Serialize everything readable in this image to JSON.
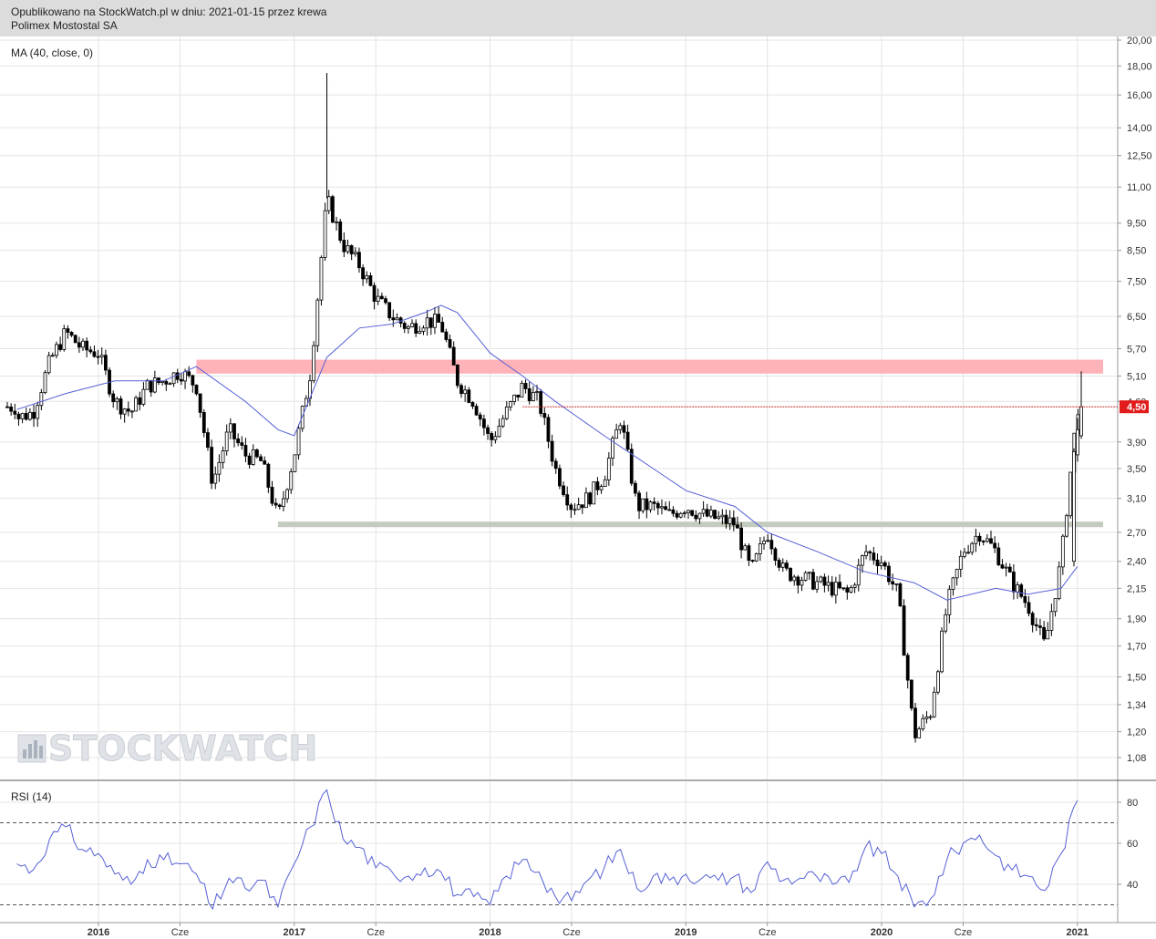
{
  "header": {
    "line1": "Opublikowano na StockWatch.pl w dniu: 2021-01-15 przez krewa",
    "line2": "Polimex Mostostal SA"
  },
  "watermark": {
    "text": "STOCKWATCH"
  },
  "colors": {
    "candle": "#000000",
    "ma": "#5560d6",
    "rsi": "#5560d6",
    "resistance_zone": "#ffb3b8",
    "support_zone": "#c3cbbf",
    "last_price_badge": "#e21b1b",
    "grid": "#e4e4e4"
  },
  "chart_data": [
    {
      "type": "candlestick",
      "title": "Polimex Mostostal SA",
      "indicator_label": "MA (40, close, 0)",
      "y_scale": "log",
      "ylim": [
        1.0,
        20.0
      ],
      "y_ticks": [
        "20,00",
        "18,00",
        "16,00",
        "14,00",
        "12,50",
        "11,00",
        "9,50",
        "8,50",
        "7,50",
        "6,50",
        "5,70",
        "5,10",
        "4,60",
        "3,90",
        "3,50",
        "3,10",
        "2,70",
        "2,40",
        "2,15",
        "1,90",
        "1,70",
        "1,50",
        "1,34",
        "1,20",
        "1,08"
      ],
      "x_ticks": [
        "2016",
        "Cze",
        "2017",
        "Cze",
        "2018",
        "Cze",
        "2019",
        "Cze",
        "2020",
        "Cze",
        "2021"
      ],
      "last_price": {
        "value": 4.5,
        "label": "4,50"
      },
      "zones": [
        {
          "name": "resistance",
          "from": 5.15,
          "to": 5.45,
          "start": "2016-07"
        },
        {
          "name": "support",
          "from": 2.76,
          "to": 2.82,
          "start": "2016-12"
        }
      ],
      "price_path": [
        {
          "t": "2015-08",
          "v": 4.3
        },
        {
          "t": "2015-09",
          "v": 4.4
        },
        {
          "t": "2015-10",
          "v": 5.4
        },
        {
          "t": "2015-11",
          "v": 6.1
        },
        {
          "t": "2015-12",
          "v": 5.7
        },
        {
          "t": "2016-01",
          "v": 5.6
        },
        {
          "t": "2016-02",
          "v": 4.6
        },
        {
          "t": "2016-03",
          "v": 4.4
        },
        {
          "t": "2016-04",
          "v": 4.9
        },
        {
          "t": "2016-05",
          "v": 5.0
        },
        {
          "t": "2016-06",
          "v": 5.2
        },
        {
          "t": "2016-07",
          "v": 4.9
        },
        {
          "t": "2016-08",
          "v": 3.3
        },
        {
          "t": "2016-09",
          "v": 4.1
        },
        {
          "t": "2016-10",
          "v": 3.7
        },
        {
          "t": "2016-11",
          "v": 3.6
        },
        {
          "t": "2016-12",
          "v": 2.85
        },
        {
          "t": "2017-01",
          "v": 3.7
        },
        {
          "t": "2017-02",
          "v": 5.2
        },
        {
          "t": "2017-03",
          "v": 10.5
        },
        {
          "t": "2017-04",
          "v": 8.7
        },
        {
          "t": "2017-05",
          "v": 8.0
        },
        {
          "t": "2017-06",
          "v": 7.0
        },
        {
          "t": "2017-07",
          "v": 6.5
        },
        {
          "t": "2017-08",
          "v": 6.2
        },
        {
          "t": "2017-09",
          "v": 6.4
        },
        {
          "t": "2017-10",
          "v": 6.3
        },
        {
          "t": "2017-11",
          "v": 5.0
        },
        {
          "t": "2017-12",
          "v": 4.6
        },
        {
          "t": "2018-01",
          "v": 3.9
        },
        {
          "t": "2018-02",
          "v": 4.4
        },
        {
          "t": "2018-03",
          "v": 4.9
        },
        {
          "t": "2018-04",
          "v": 4.6
        },
        {
          "t": "2018-05",
          "v": 3.5
        },
        {
          "t": "2018-06",
          "v": 3.0
        },
        {
          "t": "2018-07",
          "v": 3.1
        },
        {
          "t": "2018-08",
          "v": 3.4
        },
        {
          "t": "2018-09",
          "v": 4.3
        },
        {
          "t": "2018-10",
          "v": 3.0
        },
        {
          "t": "2018-11",
          "v": 3.0
        },
        {
          "t": "2018-12",
          "v": 2.9
        },
        {
          "t": "2019-01",
          "v": 3.0
        },
        {
          "t": "2019-02",
          "v": 2.9
        },
        {
          "t": "2019-03",
          "v": 2.85
        },
        {
          "t": "2019-04",
          "v": 2.8
        },
        {
          "t": "2019-05",
          "v": 2.3
        },
        {
          "t": "2019-06",
          "v": 2.7
        },
        {
          "t": "2019-07",
          "v": 2.3
        },
        {
          "t": "2019-08",
          "v": 2.25
        },
        {
          "t": "2019-09",
          "v": 2.2
        },
        {
          "t": "2019-10",
          "v": 2.15
        },
        {
          "t": "2019-11",
          "v": 2.1
        },
        {
          "t": "2019-12",
          "v": 2.5
        },
        {
          "t": "2020-01",
          "v": 2.4
        },
        {
          "t": "2020-02",
          "v": 2.1
        },
        {
          "t": "2020-03",
          "v": 1.18
        },
        {
          "t": "2020-04",
          "v": 1.3
        },
        {
          "t": "2020-05",
          "v": 2.0
        },
        {
          "t": "2020-06",
          "v": 2.5
        },
        {
          "t": "2020-07",
          "v": 2.7
        },
        {
          "t": "2020-08",
          "v": 2.5
        },
        {
          "t": "2020-09",
          "v": 2.2
        },
        {
          "t": "2020-10",
          "v": 2.0
        },
        {
          "t": "2020-11",
          "v": 1.7
        },
        {
          "t": "2020-12",
          "v": 2.4
        },
        {
          "t": "2021-01",
          "v": 4.5
        }
      ],
      "ma_path": [
        {
          "t": "2015-08",
          "v": 4.45
        },
        {
          "t": "2015-11",
          "v": 4.75
        },
        {
          "t": "2016-02",
          "v": 5.0
        },
        {
          "t": "2016-05",
          "v": 5.0
        },
        {
          "t": "2016-07",
          "v": 5.3
        },
        {
          "t": "2016-10",
          "v": 4.6
        },
        {
          "t": "2016-12",
          "v": 4.1
        },
        {
          "t": "2017-01",
          "v": 4.0
        },
        {
          "t": "2017-03",
          "v": 5.5
        },
        {
          "t": "2017-05",
          "v": 6.2
        },
        {
          "t": "2017-07",
          "v": 6.3
        },
        {
          "t": "2017-09",
          "v": 6.6
        },
        {
          "t": "2017-10",
          "v": 6.8
        },
        {
          "t": "2017-11",
          "v": 6.6
        },
        {
          "t": "2018-01",
          "v": 5.6
        },
        {
          "t": "2018-03",
          "v": 5.1
        },
        {
          "t": "2018-05",
          "v": 4.6
        },
        {
          "t": "2018-08",
          "v": 4.0
        },
        {
          "t": "2018-11",
          "v": 3.5
        },
        {
          "t": "2019-01",
          "v": 3.2
        },
        {
          "t": "2019-04",
          "v": 3.0
        },
        {
          "t": "2019-06",
          "v": 2.7
        },
        {
          "t": "2019-09",
          "v": 2.5
        },
        {
          "t": "2019-12",
          "v": 2.3
        },
        {
          "t": "2020-03",
          "v": 2.2
        },
        {
          "t": "2020-05",
          "v": 2.05
        },
        {
          "t": "2020-08",
          "v": 2.15
        },
        {
          "t": "2020-10",
          "v": 2.1
        },
        {
          "t": "2020-12",
          "v": 2.15
        },
        {
          "t": "2021-01",
          "v": 2.35
        }
      ]
    },
    {
      "type": "line",
      "title": "RSI (14)",
      "ylim": [
        25,
        90
      ],
      "y_ticks": [
        80,
        60,
        40
      ],
      "reference_lines": [
        70,
        30
      ],
      "series": [
        {
          "values": [
            {
              "t": "2015-08",
              "v": 50
            },
            {
              "t": "2015-09",
              "v": 47
            },
            {
              "t": "2015-10",
              "v": 62
            },
            {
              "t": "2015-11",
              "v": 68
            },
            {
              "t": "2015-12",
              "v": 57
            },
            {
              "t": "2016-01",
              "v": 55
            },
            {
              "t": "2016-02",
              "v": 45
            },
            {
              "t": "2016-03",
              "v": 40
            },
            {
              "t": "2016-04",
              "v": 52
            },
            {
              "t": "2016-05",
              "v": 52
            },
            {
              "t": "2016-06",
              "v": 50
            },
            {
              "t": "2016-07",
              "v": 45
            },
            {
              "t": "2016-08",
              "v": 28
            },
            {
              "t": "2016-09",
              "v": 43
            },
            {
              "t": "2016-10",
              "v": 38
            },
            {
              "t": "2016-11",
              "v": 42
            },
            {
              "t": "2016-12",
              "v": 29
            },
            {
              "t": "2017-01",
              "v": 50
            },
            {
              "t": "2017-02",
              "v": 68
            },
            {
              "t": "2017-03",
              "v": 86
            },
            {
              "t": "2017-04",
              "v": 62
            },
            {
              "t": "2017-05",
              "v": 58
            },
            {
              "t": "2017-06",
              "v": 48
            },
            {
              "t": "2017-07",
              "v": 46
            },
            {
              "t": "2017-08",
              "v": 44
            },
            {
              "t": "2017-09",
              "v": 48
            },
            {
              "t": "2017-10",
              "v": 46
            },
            {
              "t": "2017-11",
              "v": 35
            },
            {
              "t": "2017-12",
              "v": 34
            },
            {
              "t": "2018-01",
              "v": 30
            },
            {
              "t": "2018-02",
              "v": 44
            },
            {
              "t": "2018-03",
              "v": 52
            },
            {
              "t": "2018-04",
              "v": 46
            },
            {
              "t": "2018-05",
              "v": 34
            },
            {
              "t": "2018-06",
              "v": 32
            },
            {
              "t": "2018-07",
              "v": 42
            },
            {
              "t": "2018-08",
              "v": 48
            },
            {
              "t": "2018-09",
              "v": 57
            },
            {
              "t": "2018-10",
              "v": 38
            },
            {
              "t": "2018-11",
              "v": 44
            },
            {
              "t": "2018-12",
              "v": 42
            },
            {
              "t": "2019-01",
              "v": 45
            },
            {
              "t": "2019-02",
              "v": 43
            },
            {
              "t": "2019-03",
              "v": 42
            },
            {
              "t": "2019-04",
              "v": 44
            },
            {
              "t": "2019-05",
              "v": 36
            },
            {
              "t": "2019-06",
              "v": 51
            },
            {
              "t": "2019-07",
              "v": 42
            },
            {
              "t": "2019-08",
              "v": 43
            },
            {
              "t": "2019-09",
              "v": 44
            },
            {
              "t": "2019-10",
              "v": 40
            },
            {
              "t": "2019-11",
              "v": 41
            },
            {
              "t": "2019-12",
              "v": 58
            },
            {
              "t": "2020-01",
              "v": 55
            },
            {
              "t": "2020-02",
              "v": 44
            },
            {
              "t": "2020-03",
              "v": 29
            },
            {
              "t": "2020-04",
              "v": 33
            },
            {
              "t": "2020-05",
              "v": 52
            },
            {
              "t": "2020-06",
              "v": 60
            },
            {
              "t": "2020-07",
              "v": 64
            },
            {
              "t": "2020-08",
              "v": 54
            },
            {
              "t": "2020-09",
              "v": 47
            },
            {
              "t": "2020-10",
              "v": 44
            },
            {
              "t": "2020-11",
              "v": 37
            },
            {
              "t": "2020-12",
              "v": 55
            },
            {
              "t": "2021-01",
              "v": 81
            }
          ]
        }
      ]
    }
  ]
}
